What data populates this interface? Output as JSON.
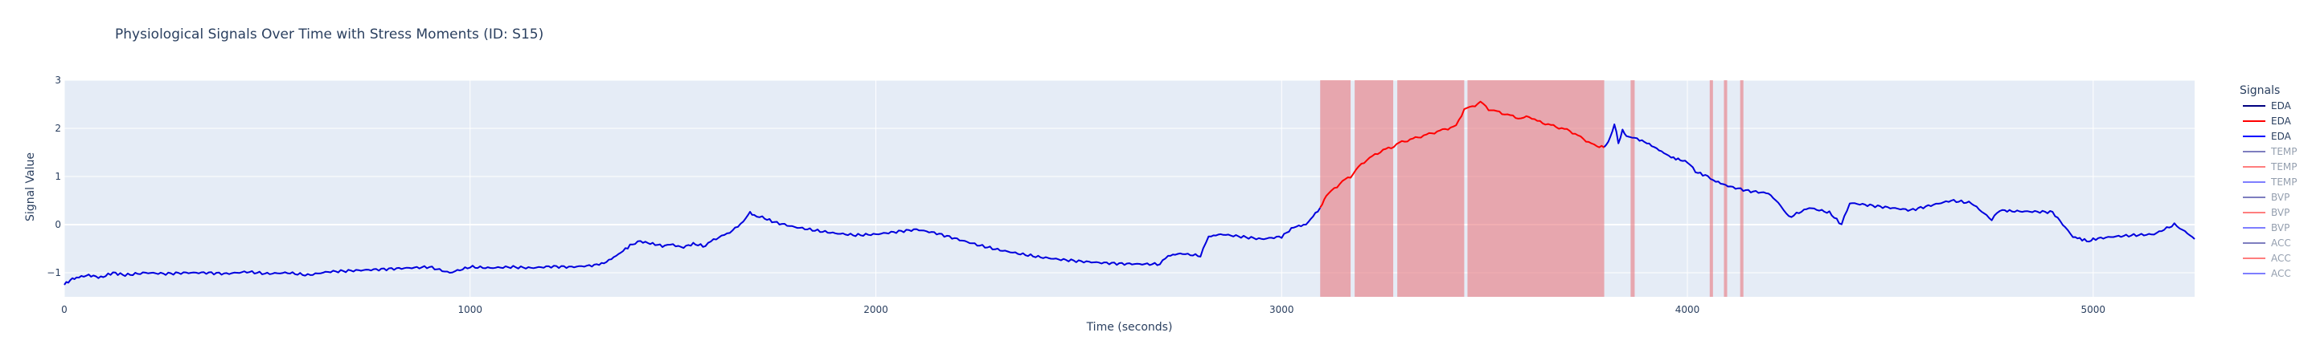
{
  "chart_data": {
    "type": "line",
    "title": "Physiological Signals Over Time with Stress Moments (ID: S15)",
    "xlabel": "Time (seconds)",
    "ylabel": "Signal Value",
    "xlim": [
      0,
      5250
    ],
    "ylim": [
      -1.5,
      3
    ],
    "x_ticks": [
      0,
      1000,
      2000,
      3000,
      4000,
      5000
    ],
    "y_ticks": [
      -1,
      0,
      1,
      2,
      3
    ],
    "grid": true,
    "legend": {
      "title": "Signals",
      "placement": "right",
      "entries": [
        {
          "label": "EDA",
          "color": "#000080",
          "visible": true
        },
        {
          "label": "EDA",
          "color": "#ff0000",
          "visible": true
        },
        {
          "label": "EDA",
          "color": "#0000ff",
          "visible": true
        },
        {
          "label": "TEMP",
          "color": "#000080",
          "visible": false
        },
        {
          "label": "TEMP",
          "color": "#ff0000",
          "visible": false
        },
        {
          "label": "TEMP",
          "color": "#0000ff",
          "visible": false
        },
        {
          "label": "BVP",
          "color": "#000080",
          "visible": false
        },
        {
          "label": "BVP",
          "color": "#ff0000",
          "visible": false
        },
        {
          "label": "BVP",
          "color": "#0000ff",
          "visible": false
        },
        {
          "label": "ACC",
          "color": "#000080",
          "visible": false
        },
        {
          "label": "ACC",
          "color": "#ff0000",
          "visible": false
        },
        {
          "label": "ACC",
          "color": "#0000ff",
          "visible": false
        }
      ]
    },
    "stress_regions": [
      [
        3095,
        3170
      ],
      [
        3180,
        3275
      ],
      [
        3285,
        3450
      ],
      [
        3458,
        3795
      ],
      [
        3860,
        3870
      ],
      [
        4055,
        4063
      ],
      [
        4090,
        4098
      ],
      [
        4130,
        4138
      ]
    ],
    "stress_color": "#e8787e",
    "series": [
      {
        "color": "#0000dd",
        "x": [
          0,
          15,
          30,
          60,
          90,
          120,
          150,
          200,
          250,
          300,
          350,
          400,
          450,
          500,
          550,
          600,
          650,
          700,
          750,
          800,
          850,
          900,
          950,
          1000,
          1050,
          1100,
          1150,
          1200,
          1250,
          1300,
          1330,
          1360,
          1400,
          1420,
          1450,
          1480,
          1500,
          1520,
          1550,
          1580,
          1600,
          1620,
          1640,
          1660,
          1680,
          1690,
          1700,
          1720,
          1750,
          1800,
          1850,
          1900,
          1950,
          2000,
          2050,
          2100,
          2150,
          2200,
          2250,
          2300,
          2350,
          2400,
          2450,
          2500,
          2550,
          2600,
          2650,
          2700,
          2720,
          2750,
          2800,
          2820,
          2850,
          2900,
          2950,
          3000,
          3030,
          3060,
          3095
        ],
        "y": [
          -1.25,
          -1.15,
          -1.1,
          -1.05,
          -1.1,
          -1.0,
          -1.05,
          -1.0,
          -1.02,
          -1.0,
          -1.0,
          -1.02,
          -0.98,
          -1.02,
          -1.0,
          -1.05,
          -0.98,
          -0.96,
          -0.94,
          -0.92,
          -0.9,
          -0.88,
          -1.0,
          -0.88,
          -0.9,
          -0.88,
          -0.9,
          -0.87,
          -0.88,
          -0.85,
          -0.8,
          -0.65,
          -0.4,
          -0.35,
          -0.4,
          -0.45,
          -0.4,
          -0.48,
          -0.4,
          -0.45,
          -0.3,
          -0.25,
          -0.15,
          -0.05,
          0.15,
          0.25,
          0.2,
          0.15,
          0.05,
          -0.05,
          -0.12,
          -0.18,
          -0.22,
          -0.2,
          -0.15,
          -0.1,
          -0.18,
          -0.3,
          -0.42,
          -0.52,
          -0.6,
          -0.67,
          -0.72,
          -0.76,
          -0.79,
          -0.81,
          -0.82,
          -0.82,
          -0.65,
          -0.6,
          -0.65,
          -0.25,
          -0.2,
          -0.25,
          -0.3,
          -0.25,
          -0.05,
          0.0,
          0.35
        ]
      },
      {
        "color": "#ff0000",
        "x": [
          3095,
          3110,
          3130,
          3150,
          3170,
          3190,
          3210,
          3230,
          3250,
          3270,
          3290,
          3310,
          3330,
          3350,
          3370,
          3390,
          3410,
          3430,
          3450,
          3470,
          3490,
          3510,
          3530,
          3550,
          3570,
          3590,
          3610,
          3630,
          3650,
          3670,
          3690,
          3710,
          3730,
          3750,
          3770,
          3795
        ],
        "y": [
          0.35,
          0.6,
          0.75,
          0.9,
          1.0,
          1.2,
          1.35,
          1.45,
          1.55,
          1.6,
          1.7,
          1.75,
          1.8,
          1.85,
          1.9,
          1.95,
          2.0,
          2.05,
          2.4,
          2.45,
          2.55,
          2.4,
          2.35,
          2.3,
          2.25,
          2.2,
          2.25,
          2.15,
          2.1,
          2.05,
          2.0,
          1.95,
          1.85,
          1.75,
          1.65,
          1.6
        ]
      },
      {
        "color": "#0000dd",
        "x": [
          3795,
          3810,
          3820,
          3830,
          3840,
          3850,
          3870,
          3900,
          3930,
          3960,
          4000,
          4020,
          4050,
          4070,
          4100,
          4150,
          4200,
          4230,
          4250,
          4300,
          4350,
          4380,
          4400,
          4450,
          4500,
          4550,
          4600,
          4650,
          4700,
          4750,
          4770,
          4800,
          4850,
          4900,
          4950,
          4990,
          5000,
          5050,
          5100,
          5150,
          5200,
          5220,
          5250
        ],
        "y": [
          1.6,
          1.8,
          2.1,
          1.7,
          1.95,
          1.85,
          1.8,
          1.7,
          1.55,
          1.4,
          1.3,
          1.1,
          1.0,
          0.9,
          0.8,
          0.7,
          0.65,
          0.4,
          0.15,
          0.35,
          0.25,
          0.0,
          0.45,
          0.4,
          0.35,
          0.3,
          0.4,
          0.5,
          0.45,
          0.1,
          0.3,
          0.28,
          0.27,
          0.26,
          -0.25,
          -0.35,
          -0.3,
          -0.25,
          -0.22,
          -0.2,
          0.0,
          -0.1,
          -0.3
        ]
      }
    ]
  }
}
